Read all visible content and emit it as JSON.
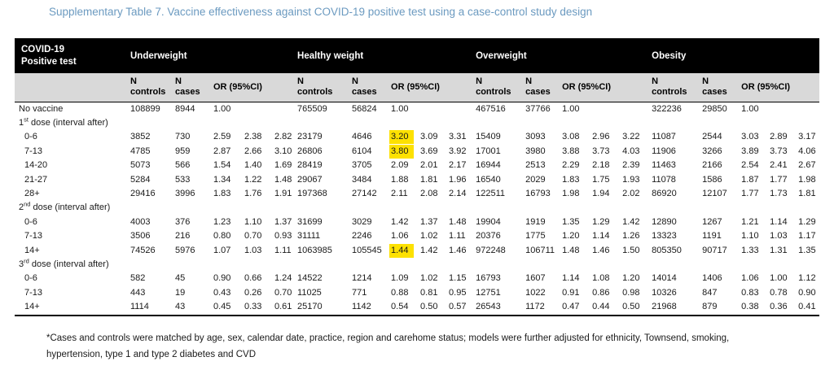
{
  "title": "Supplementary Table 7. Vaccine effectiveness against COVID-19 positive test using a case-control study design",
  "colors": {
    "title_text": "#6b9ac0",
    "header_bg": "#000000",
    "header_text": "#ffffff",
    "subheader_bg": "#d9d9d9",
    "highlight": "#fde101"
  },
  "table": {
    "header": {
      "line1": "COVID-19",
      "line2": "Positive test"
    },
    "groups": [
      "Underweight",
      "Healthy weight",
      "Overweight",
      "Obesity"
    ],
    "sub": {
      "n": "N",
      "controls": "controls",
      "cases": "cases",
      "or": "OR (95%CI)"
    },
    "rows": [
      {
        "type": "data",
        "label": "No vaccine",
        "indent": false,
        "cells": [
          [
            "108899",
            "8944",
            "1.00",
            "",
            ""
          ],
          [
            "765509",
            "56824",
            "1.00",
            "",
            ""
          ],
          [
            "467516",
            "37766",
            "1.00",
            "",
            ""
          ],
          [
            "322236",
            "29850",
            "1.00",
            "",
            ""
          ]
        ]
      },
      {
        "type": "section",
        "pre": "1",
        "sup": "st",
        "post": " dose (interval after)"
      },
      {
        "type": "data",
        "label": "0-6",
        "indent": true,
        "hl": [
          1
        ],
        "cells": [
          [
            "3852",
            "730",
            "2.59",
            "2.38",
            "2.82"
          ],
          [
            "23179",
            "4646",
            "3.20",
            "3.09",
            "3.31"
          ],
          [
            "15409",
            "3093",
            "3.08",
            "2.96",
            "3.22"
          ],
          [
            "11087",
            "2544",
            "3.03",
            "2.89",
            "3.17"
          ]
        ]
      },
      {
        "type": "data",
        "label": "7-13",
        "indent": true,
        "hl": [
          1
        ],
        "cells": [
          [
            "4785",
            "959",
            "2.87",
            "2.66",
            "3.10"
          ],
          [
            "26806",
            "6104",
            "3.80",
            "3.69",
            "3.92"
          ],
          [
            "17001",
            "3980",
            "3.88",
            "3.73",
            "4.03"
          ],
          [
            "11906",
            "3266",
            "3.89",
            "3.73",
            "4.06"
          ]
        ]
      },
      {
        "type": "data",
        "label": "14-20",
        "indent": true,
        "cells": [
          [
            "5073",
            "566",
            "1.54",
            "1.40",
            "1.69"
          ],
          [
            "28419",
            "3705",
            "2.09",
            "2.01",
            "2.17"
          ],
          [
            "16944",
            "2513",
            "2.29",
            "2.18",
            "2.39"
          ],
          [
            "11463",
            "2166",
            "2.54",
            "2.41",
            "2.67"
          ]
        ]
      },
      {
        "type": "data",
        "label": "21-27",
        "indent": true,
        "cells": [
          [
            "5284",
            "533",
            "1.34",
            "1.22",
            "1.48"
          ],
          [
            "29067",
            "3484",
            "1.88",
            "1.81",
            "1.96"
          ],
          [
            "16540",
            "2029",
            "1.83",
            "1.75",
            "1.93"
          ],
          [
            "11078",
            "1586",
            "1.87",
            "1.77",
            "1.98"
          ]
        ]
      },
      {
        "type": "data",
        "label": "28+",
        "indent": true,
        "cells": [
          [
            "29416",
            "3996",
            "1.83",
            "1.76",
            "1.91"
          ],
          [
            "197368",
            "27142",
            "2.11",
            "2.08",
            "2.14"
          ],
          [
            "122511",
            "16793",
            "1.98",
            "1.94",
            "2.02"
          ],
          [
            "86920",
            "12107",
            "1.77",
            "1.73",
            "1.81"
          ]
        ]
      },
      {
        "type": "section",
        "pre": "2",
        "sup": "nd",
        "post": " dose (interval after)"
      },
      {
        "type": "data",
        "label": "0-6",
        "indent": true,
        "cells": [
          [
            "4003",
            "376",
            "1.23",
            "1.10",
            "1.37"
          ],
          [
            "31699",
            "3029",
            "1.42",
            "1.37",
            "1.48"
          ],
          [
            "19904",
            "1919",
            "1.35",
            "1.29",
            "1.42"
          ],
          [
            "12890",
            "1267",
            "1.21",
            "1.14",
            "1.29"
          ]
        ]
      },
      {
        "type": "data",
        "label": "7-13",
        "indent": true,
        "cells": [
          [
            "3506",
            "216",
            "0.80",
            "0.70",
            "0.93"
          ],
          [
            "31111",
            "2246",
            "1.06",
            "1.02",
            "1.11"
          ],
          [
            "20376",
            "1775",
            "1.20",
            "1.14",
            "1.26"
          ],
          [
            "13323",
            "1191",
            "1.10",
            "1.03",
            "1.17"
          ]
        ]
      },
      {
        "type": "data",
        "label": "14+",
        "indent": true,
        "hl": [
          1
        ],
        "cells": [
          [
            "74526",
            "5976",
            "1.07",
            "1.03",
            "1.11"
          ],
          [
            "1063985",
            "105545",
            "1.44",
            "1.42",
            "1.46"
          ],
          [
            "972248",
            "106711",
            "1.48",
            "1.46",
            "1.50"
          ],
          [
            "805350",
            "90717",
            "1.33",
            "1.31",
            "1.35"
          ]
        ]
      },
      {
        "type": "section",
        "pre": "3",
        "sup": "rd",
        "post": " dose (interval after)"
      },
      {
        "type": "data",
        "label": "0-6",
        "indent": true,
        "cells": [
          [
            "582",
            "45",
            "0.90",
            "0.66",
            "1.24"
          ],
          [
            "14522",
            "1214",
            "1.09",
            "1.02",
            "1.15"
          ],
          [
            "16793",
            "1607",
            "1.14",
            "1.08",
            "1.20"
          ],
          [
            "14014",
            "1406",
            "1.06",
            "1.00",
            "1.12"
          ]
        ]
      },
      {
        "type": "data",
        "label": "7-13",
        "indent": true,
        "cells": [
          [
            "443",
            "19",
            "0.43",
            "0.26",
            "0.70"
          ],
          [
            "11025",
            "771",
            "0.88",
            "0.81",
            "0.95"
          ],
          [
            "12751",
            "1022",
            "0.91",
            "0.86",
            "0.98"
          ],
          [
            "10326",
            "847",
            "0.83",
            "0.78",
            "0.90"
          ]
        ]
      },
      {
        "type": "data",
        "label": "14+",
        "indent": true,
        "cells": [
          [
            "1114",
            "43",
            "0.45",
            "0.33",
            "0.61"
          ],
          [
            "25170",
            "1142",
            "0.54",
            "0.50",
            "0.57"
          ],
          [
            "26543",
            "1172",
            "0.47",
            "0.44",
            "0.50"
          ],
          [
            "21968",
            "879",
            "0.38",
            "0.36",
            "0.41"
          ]
        ]
      }
    ]
  },
  "footnote": {
    "line1": "*Cases and controls were matched by age, sex, calendar date, practice, region and carehome status; models were further adjusted for ethnicity, Townsend, smoking,",
    "line2": "hypertension, type 1 and type 2 diabetes and CVD"
  }
}
